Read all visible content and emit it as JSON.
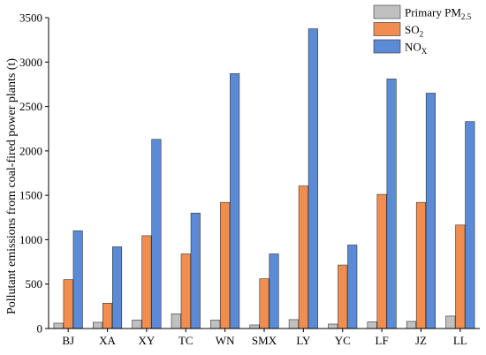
{
  "chart_data": {
    "type": "bar",
    "title": "",
    "xlabel": "",
    "ylabel": "Pollutant emissions from coal-fired power plants (t)",
    "ylim": [
      0,
      3500
    ],
    "yticks": [
      "0",
      "500",
      "1000",
      "1500",
      "2000",
      "2500",
      "3000",
      "3500"
    ],
    "categories": [
      "BJ",
      "XA",
      "XY",
      "TC",
      "WN",
      "SMX",
      "LY",
      "YC",
      "LF",
      "JZ",
      "LL"
    ],
    "legend_position": "top-right",
    "grid": false,
    "series": [
      {
        "name": "Primary PM",
        "name_sub": "2.5",
        "color": "#c0c0c0",
        "values": [
          60,
          70,
          95,
          165,
          95,
          40,
          100,
          50,
          75,
          80,
          140
        ]
      },
      {
        "name": "SO",
        "name_sub": "2",
        "color": "#f08d4f",
        "values": [
          550,
          285,
          1045,
          840,
          1420,
          560,
          1605,
          715,
          1510,
          1420,
          1165
        ]
      },
      {
        "name": "NO",
        "name_sub": "X",
        "color": "#5b8ad6",
        "values": [
          1100,
          920,
          2130,
          1300,
          2870,
          840,
          3375,
          940,
          2810,
          2650,
          2330
        ]
      }
    ]
  }
}
